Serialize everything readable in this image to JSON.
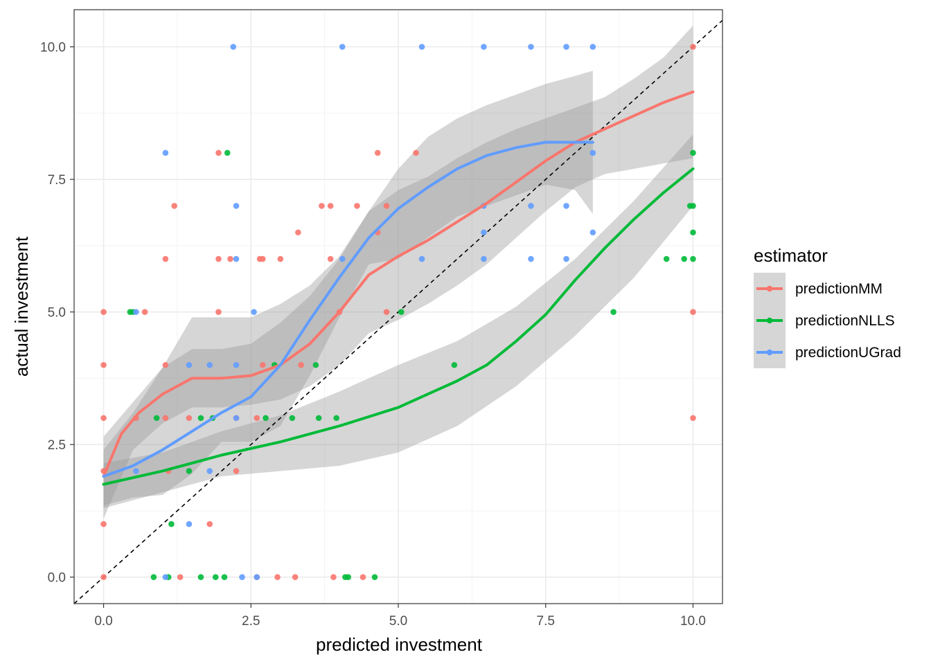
{
  "chart_data": {
    "type": "scatter",
    "xlabel": "predicted investment",
    "ylabel": "actual investment",
    "xlim": [
      -0.5,
      10.5
    ],
    "ylim": [
      -0.5,
      10.7
    ],
    "x_ticks": [
      "0.0",
      "2.5",
      "5.0",
      "7.5",
      "10.0"
    ],
    "x_tick_values": [
      0,
      2.5,
      5,
      7.5,
      10
    ],
    "y_ticks": [
      "0.0",
      "2.5",
      "5.0",
      "7.5",
      "10.0"
    ],
    "y_tick_values": [
      0,
      2.5,
      5,
      7.5,
      10
    ],
    "grid": true,
    "reference_line": {
      "style": "dashed",
      "color": "#000000",
      "from": [
        -0.5,
        -0.5
      ],
      "to": [
        10.5,
        10.5
      ]
    },
    "legend": {
      "title": "estimator",
      "placement": "right",
      "entries": [
        "predictionMM",
        "predictionNLLS",
        "predictionUGrad"
      ]
    },
    "series": [
      {
        "name": "predictionMM",
        "color": "#F8766D",
        "points": [
          [
            0,
            5
          ],
          [
            0,
            4
          ],
          [
            0,
            3
          ],
          [
            0,
            2
          ],
          [
            0,
            1
          ],
          [
            0,
            0
          ],
          [
            0.55,
            3
          ],
          [
            0.7,
            5
          ],
          [
            1.05,
            6
          ],
          [
            1.05,
            4
          ],
          [
            1.05,
            3
          ],
          [
            1.1,
            2
          ],
          [
            1.2,
            7
          ],
          [
            1.3,
            0
          ],
          [
            1.45,
            3
          ],
          [
            1.8,
            1
          ],
          [
            1.95,
            8
          ],
          [
            1.95,
            6
          ],
          [
            1.95,
            5
          ],
          [
            2.15,
            6
          ],
          [
            2.25,
            2
          ],
          [
            2.25,
            3
          ],
          [
            2.6,
            0
          ],
          [
            2.6,
            3
          ],
          [
            2.65,
            6
          ],
          [
            2.7,
            4
          ],
          [
            2.7,
            6
          ],
          [
            2.95,
            0
          ],
          [
            3.0,
            6
          ],
          [
            3.25,
            0
          ],
          [
            3.3,
            6.5
          ],
          [
            3.35,
            4
          ],
          [
            3.7,
            7
          ],
          [
            3.85,
            7
          ],
          [
            3.9,
            0
          ],
          [
            3.85,
            6
          ],
          [
            4.0,
            5
          ],
          [
            4.3,
            7
          ],
          [
            4.4,
            0
          ],
          [
            4.65,
            8
          ],
          [
            4.65,
            6.5
          ],
          [
            4.8,
            7
          ],
          [
            4.8,
            5
          ],
          [
            5.3,
            8
          ],
          [
            10,
            10
          ],
          [
            10,
            5
          ],
          [
            10,
            3
          ]
        ],
        "fit": [
          [
            0,
            1.9
          ],
          [
            0.3,
            2.7
          ],
          [
            0.6,
            3.1
          ],
          [
            1.0,
            3.45
          ],
          [
            1.5,
            3.75
          ],
          [
            2.0,
            3.75
          ],
          [
            2.5,
            3.8
          ],
          [
            3.0,
            4.0
          ],
          [
            3.5,
            4.4
          ],
          [
            4.0,
            5.0
          ],
          [
            4.5,
            5.7
          ],
          [
            5.0,
            6.05
          ],
          [
            5.5,
            6.35
          ],
          [
            6.0,
            6.7
          ],
          [
            6.5,
            7.05
          ],
          [
            7.0,
            7.45
          ],
          [
            7.5,
            7.85
          ],
          [
            8.0,
            8.2
          ],
          [
            8.5,
            8.45
          ],
          [
            9.0,
            8.7
          ],
          [
            9.5,
            8.95
          ],
          [
            10,
            9.15
          ]
        ],
        "band_upper": [
          [
            0,
            2.65
          ],
          [
            0.5,
            3.3
          ],
          [
            1.0,
            3.95
          ],
          [
            1.5,
            4.3
          ],
          [
            2.0,
            4.3
          ],
          [
            2.5,
            4.4
          ],
          [
            3.0,
            4.8
          ],
          [
            3.5,
            5.3
          ],
          [
            4.0,
            6.0
          ],
          [
            4.5,
            6.9
          ],
          [
            5.0,
            7.3
          ],
          [
            5.5,
            7.55
          ],
          [
            6.0,
            7.9
          ],
          [
            6.5,
            8.2
          ],
          [
            7.0,
            8.45
          ],
          [
            7.5,
            8.65
          ],
          [
            8.0,
            8.85
          ],
          [
            8.5,
            9.05
          ],
          [
            9.0,
            9.4
          ],
          [
            9.5,
            9.8
          ],
          [
            10,
            10.4
          ]
        ],
        "band_lower": [
          [
            0,
            1.1
          ],
          [
            0.5,
            2.4
          ],
          [
            1.0,
            2.9
          ],
          [
            1.5,
            3.2
          ],
          [
            2.0,
            3.2
          ],
          [
            2.5,
            3.25
          ],
          [
            3.0,
            3.35
          ],
          [
            3.5,
            3.6
          ],
          [
            4.0,
            4.0
          ],
          [
            4.5,
            4.6
          ],
          [
            5.0,
            4.85
          ],
          [
            5.5,
            5.15
          ],
          [
            6.0,
            5.5
          ],
          [
            6.5,
            5.9
          ],
          [
            7.0,
            6.4
          ],
          [
            7.5,
            6.9
          ],
          [
            8.0,
            7.35
          ],
          [
            8.5,
            7.6
          ],
          [
            9.0,
            7.7
          ],
          [
            9.5,
            7.8
          ],
          [
            10,
            7.9
          ]
        ]
      },
      {
        "name": "predictionNLLS",
        "color": "#00BA38",
        "points": [
          [
            0.45,
            5
          ],
          [
            0.5,
            5
          ],
          [
            0.9,
            3
          ],
          [
            0.85,
            0
          ],
          [
            1.1,
            0
          ],
          [
            1.15,
            1
          ],
          [
            1.45,
            2
          ],
          [
            1.65,
            3
          ],
          [
            1.65,
            0
          ],
          [
            1.85,
            3
          ],
          [
            1.9,
            0
          ],
          [
            2.05,
            0
          ],
          [
            2.1,
            8
          ],
          [
            2.75,
            3
          ],
          [
            2.9,
            4
          ],
          [
            3.2,
            3
          ],
          [
            3.6,
            4
          ],
          [
            3.65,
            3
          ],
          [
            3.95,
            3
          ],
          [
            4.1,
            0
          ],
          [
            4.15,
            0
          ],
          [
            4.6,
            0
          ],
          [
            5.05,
            5
          ],
          [
            5.95,
            4
          ],
          [
            8.65,
            5
          ],
          [
            9.55,
            6
          ],
          [
            9.85,
            6
          ],
          [
            9.95,
            7
          ],
          [
            10,
            7
          ],
          [
            10,
            6.5
          ],
          [
            10,
            8
          ],
          [
            10,
            6
          ]
        ],
        "fit": [
          [
            0,
            1.75
          ],
          [
            1,
            2.0
          ],
          [
            2,
            2.3
          ],
          [
            3,
            2.55
          ],
          [
            4,
            2.85
          ],
          [
            5,
            3.2
          ],
          [
            6,
            3.7
          ],
          [
            6.5,
            4.0
          ],
          [
            7,
            4.45
          ],
          [
            7.5,
            4.95
          ],
          [
            8,
            5.6
          ],
          [
            8.5,
            6.2
          ],
          [
            9,
            6.75
          ],
          [
            9.5,
            7.25
          ],
          [
            10,
            7.7
          ]
        ],
        "band_upper": [
          [
            0,
            2.15
          ],
          [
            1,
            2.35
          ],
          [
            2,
            2.75
          ],
          [
            3,
            3.05
          ],
          [
            4,
            3.5
          ],
          [
            5,
            4.0
          ],
          [
            6,
            4.45
          ],
          [
            7,
            5.1
          ],
          [
            8,
            6.0
          ],
          [
            9,
            7.1
          ],
          [
            10,
            8.35
          ]
        ],
        "band_lower": [
          [
            0,
            1.3
          ],
          [
            1,
            1.6
          ],
          [
            2,
            1.9
          ],
          [
            3,
            2.0
          ],
          [
            4,
            2.1
          ],
          [
            5,
            2.35
          ],
          [
            6,
            2.85
          ],
          [
            7,
            3.6
          ],
          [
            8,
            4.55
          ],
          [
            9,
            5.65
          ],
          [
            10,
            7.0
          ]
        ]
      },
      {
        "name": "predictionUGrad",
        "color": "#619CFF",
        "points": [
          [
            0.55,
            5
          ],
          [
            0.55,
            2
          ],
          [
            1.05,
            8
          ],
          [
            1.05,
            0
          ],
          [
            1.45,
            4
          ],
          [
            1.45,
            1
          ],
          [
            1.8,
            4
          ],
          [
            1.8,
            2
          ],
          [
            2.2,
            10
          ],
          [
            2.25,
            7
          ],
          [
            2.25,
            6
          ],
          [
            2.25,
            4
          ],
          [
            2.25,
            3
          ],
          [
            2.35,
            0
          ],
          [
            2.55,
            5
          ],
          [
            2.6,
            0
          ],
          [
            4.05,
            10
          ],
          [
            4.05,
            6
          ],
          [
            5.4,
            10
          ],
          [
            5.4,
            6
          ],
          [
            6.45,
            10
          ],
          [
            6.45,
            7
          ],
          [
            6.45,
            6.5
          ],
          [
            6.45,
            6
          ],
          [
            7.25,
            10
          ],
          [
            7.25,
            7
          ],
          [
            7.25,
            6
          ],
          [
            7.85,
            10
          ],
          [
            7.85,
            7
          ],
          [
            7.85,
            6
          ],
          [
            8.3,
            10
          ],
          [
            8.3,
            8
          ],
          [
            8.3,
            6.5
          ]
        ],
        "fit": [
          [
            0,
            1.9
          ],
          [
            0.5,
            2.1
          ],
          [
            1.0,
            2.4
          ],
          [
            1.5,
            2.75
          ],
          [
            2.0,
            3.1
          ],
          [
            2.5,
            3.4
          ],
          [
            3.0,
            4.0
          ],
          [
            3.5,
            4.85
          ],
          [
            4.0,
            5.65
          ],
          [
            4.5,
            6.4
          ],
          [
            5.0,
            6.95
          ],
          [
            5.5,
            7.35
          ],
          [
            6.0,
            7.7
          ],
          [
            6.5,
            7.95
          ],
          [
            7.0,
            8.1
          ],
          [
            7.5,
            8.2
          ],
          [
            8.0,
            8.2
          ],
          [
            8.3,
            8.2
          ]
        ],
        "band_upper": [
          [
            0,
            2.4
          ],
          [
            0.5,
            3.1
          ],
          [
            1.0,
            3.95
          ],
          [
            1.5,
            4.9
          ],
          [
            2.0,
            4.9
          ],
          [
            2.5,
            4.9
          ],
          [
            3.0,
            5.15
          ],
          [
            3.5,
            5.5
          ],
          [
            4.0,
            6.05
          ],
          [
            4.5,
            6.9
          ],
          [
            5.0,
            7.7
          ],
          [
            5.5,
            8.3
          ],
          [
            6.0,
            8.65
          ],
          [
            6.5,
            8.9
          ],
          [
            7.0,
            9.1
          ],
          [
            7.5,
            9.3
          ],
          [
            8.0,
            9.45
          ],
          [
            8.3,
            9.55
          ]
        ],
        "band_lower": [
          [
            0,
            1.35
          ],
          [
            0.5,
            1.5
          ],
          [
            1.0,
            1.55
          ],
          [
            1.5,
            1.95
          ],
          [
            2.0,
            2.55
          ],
          [
            2.5,
            2.55
          ],
          [
            3.0,
            2.85
          ],
          [
            3.5,
            3.8
          ],
          [
            4.0,
            4.9
          ],
          [
            4.5,
            5.9
          ],
          [
            5.0,
            6.0
          ],
          [
            5.5,
            6.4
          ],
          [
            6.0,
            6.8
          ],
          [
            6.5,
            7.0
          ],
          [
            7.0,
            7.2
          ],
          [
            7.5,
            7.4
          ],
          [
            8.0,
            7.3
          ],
          [
            8.3,
            6.85
          ]
        ]
      }
    ]
  }
}
